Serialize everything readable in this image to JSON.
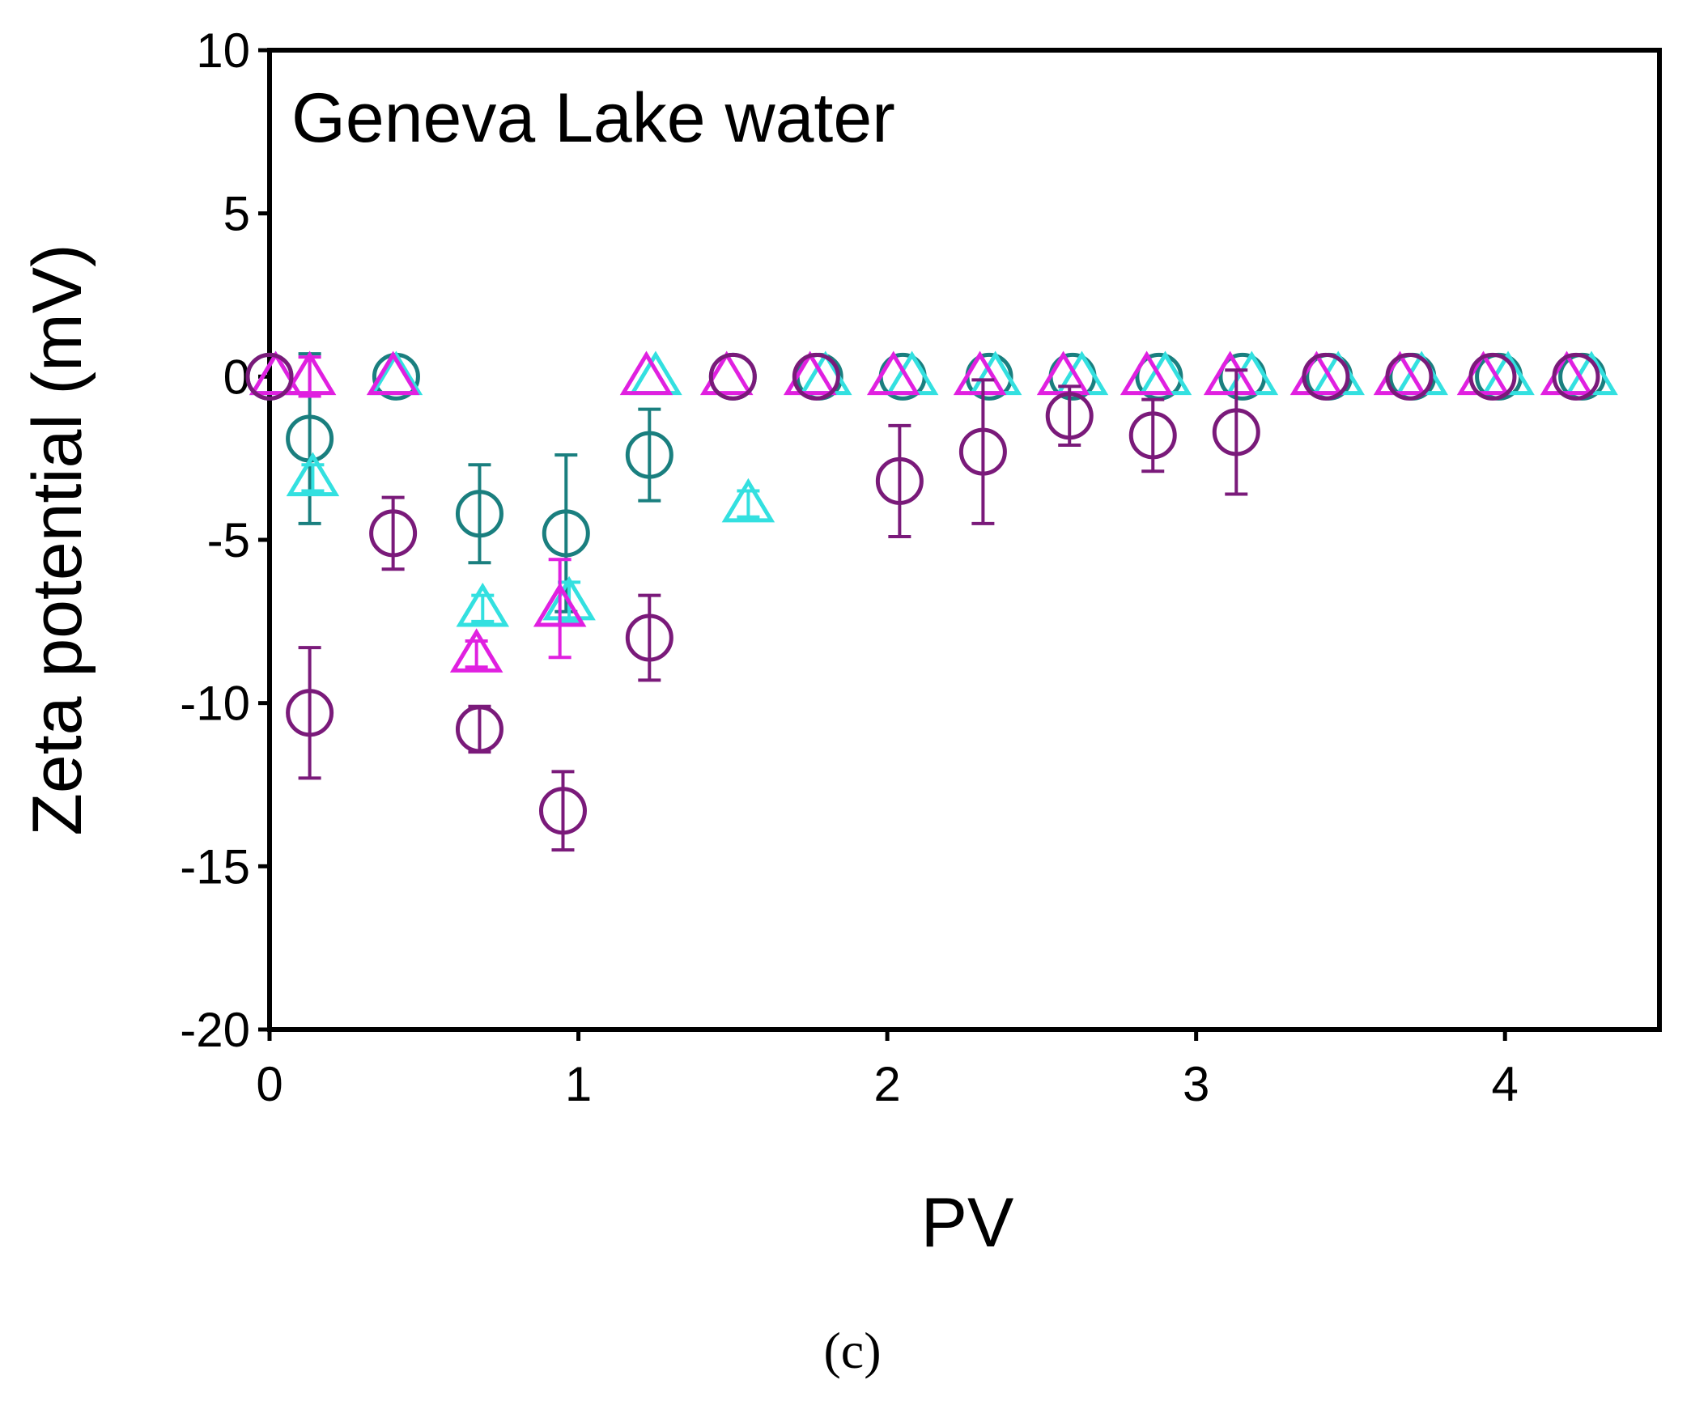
{
  "chart_data": {
    "type": "scatter",
    "title": "",
    "annotation": "Geneva Lake water",
    "panel_label": "(c)",
    "xlabel": "PV",
    "ylabel": "Zeta potential (mV)",
    "xlim": [
      0,
      4.5
    ],
    "ylim": [
      -20,
      10
    ],
    "x_ticks": [
      0,
      1,
      2,
      3,
      4
    ],
    "x_tick_labels": [
      "0",
      "1",
      "2",
      "3",
      "4"
    ],
    "y_ticks": [
      10,
      5,
      0,
      -5,
      -10,
      -15,
      -20
    ],
    "y_tick_labels": [
      "10",
      "5",
      "0",
      "-5",
      "-10",
      "-15",
      "-20"
    ],
    "grid": false,
    "legend": "none",
    "series": [
      {
        "name": "teal circles",
        "marker": "circle",
        "color": "#1a7f7f",
        "x": [
          0,
          0.13,
          0.41,
          0.68,
          0.96,
          1.23,
          1.5,
          1.78,
          2.05,
          2.33,
          2.6,
          2.88,
          3.15,
          3.43,
          3.7,
          3.98,
          4.25
        ],
        "y": [
          0,
          -1.9,
          0,
          -4.2,
          -4.8,
          -2.4,
          0,
          0,
          0,
          0,
          0,
          0,
          0,
          0,
          0,
          0,
          0
        ],
        "err": [
          0,
          2.6,
          0,
          1.5,
          2.4,
          1.4,
          0,
          0,
          0,
          0,
          0,
          0,
          0,
          0,
          0,
          0,
          0
        ]
      },
      {
        "name": "cyan triangles",
        "marker": "triangle",
        "color": "#33e0e0",
        "x": [
          0.02,
          0.14,
          0.41,
          0.69,
          0.97,
          1.25,
          1.55,
          1.8,
          2.08,
          2.35,
          2.63,
          2.9,
          3.18,
          3.46,
          3.73,
          4.01,
          4.28
        ],
        "y": [
          0,
          -3.1,
          0,
          -7.1,
          -6.9,
          0,
          -3.9,
          0,
          0,
          0,
          0,
          0,
          0,
          0,
          0,
          0,
          0
        ],
        "err": [
          0,
          0.4,
          0,
          0.4,
          0.6,
          0,
          0.4,
          0,
          0,
          0,
          0,
          0,
          0,
          0,
          0,
          0,
          0
        ]
      },
      {
        "name": "magenta triangles",
        "marker": "triangle",
        "color": "#e020e0",
        "x": [
          0.02,
          0.13,
          0.4,
          0.67,
          0.94,
          1.22,
          1.48,
          1.75,
          2.02,
          2.3,
          2.57,
          2.84,
          3.11,
          3.39,
          3.66,
          3.93,
          4.2
        ],
        "y": [
          0,
          0,
          0,
          -8.5,
          -7.1,
          0,
          0,
          0,
          0,
          0,
          0,
          0,
          0,
          0,
          0,
          0,
          0
        ],
        "err": [
          0,
          0.6,
          0,
          0.4,
          1.5,
          0,
          0,
          0,
          0,
          0,
          0,
          0,
          0,
          0,
          0,
          0,
          0
        ]
      },
      {
        "name": "purple circles",
        "marker": "circle",
        "color": "#7a1a7a",
        "x": [
          0,
          0.13,
          0.4,
          0.68,
          0.95,
          1.23,
          1.5,
          1.77,
          2.04,
          2.31,
          2.59,
          2.86,
          3.13,
          3.42,
          3.69,
          3.96,
          4.23
        ],
        "y": [
          0,
          -10.3,
          -4.8,
          -10.8,
          -13.3,
          -8.0,
          0,
          0,
          -3.2,
          -2.3,
          -1.2,
          -1.8,
          -1.7,
          0,
          0,
          0,
          0
        ],
        "err": [
          0,
          2.0,
          1.1,
          0.7,
          1.2,
          1.3,
          0,
          0,
          1.7,
          2.2,
          0.9,
          1.1,
          1.9,
          0,
          0,
          0,
          0
        ]
      }
    ]
  }
}
